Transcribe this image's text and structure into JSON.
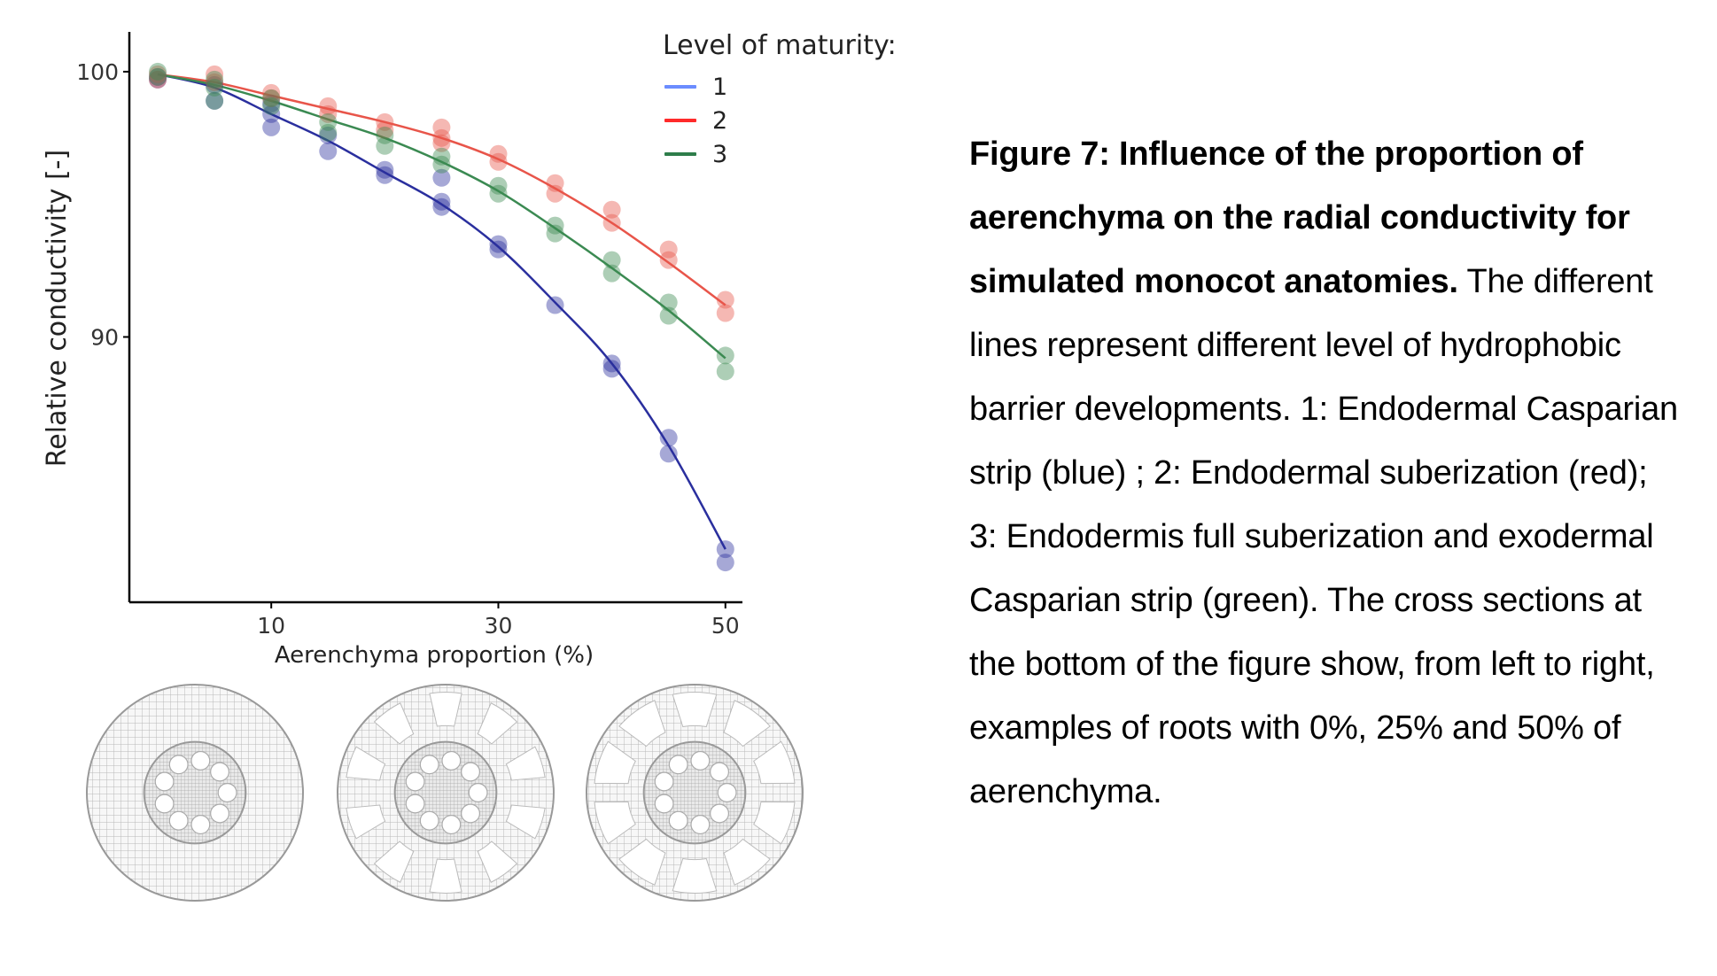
{
  "legend": {
    "title": "Level of maturity:",
    "items": [
      {
        "label": "1",
        "color": "#6b8cff"
      },
      {
        "label": "2",
        "color": "#ff2a2a"
      },
      {
        "label": "3",
        "color": "#2e7d4a"
      }
    ]
  },
  "caption": {
    "lead": "Figure 7: Influence of the proportion of aerenchyma on the radial conductivity for simulated monocot anatomies.",
    "body": " The different lines represent different level of hydrophobic barrier developments. 1: Endodermal Casparian strip (blue) ; 2: Endodermal suberization (red); 3: Endodermis full suberization and exodermal Casparian strip (green). The cross sections at the bottom of the figure show, from left to right, examples of roots with 0%, 25% and 50% of aerenchyma."
  },
  "chart_data": {
    "type": "scatter",
    "xlabel": "Aerenchyma proportion  (%)",
    "ylabel": "Relative conductivity [-]",
    "xlim": [
      -2.5,
      51.5
    ],
    "ylim": [
      80.0,
      101.5
    ],
    "xticks": [
      10,
      30,
      50
    ],
    "yticks": [
      90,
      100
    ],
    "grid": false,
    "legend_position": "top-right",
    "series": [
      {
        "name": "1",
        "color": "#2a2f9e",
        "fit": [
          [
            0,
            99.9
          ],
          [
            5,
            99.4
          ],
          [
            10,
            98.4
          ],
          [
            15,
            97.4
          ],
          [
            20,
            96.2
          ],
          [
            25,
            95.0
          ],
          [
            30,
            93.4
          ],
          [
            35,
            91.3
          ],
          [
            40,
            89.0
          ],
          [
            45,
            85.9
          ],
          [
            50,
            82.0
          ]
        ],
        "points": [
          [
            0,
            99.8
          ],
          [
            0,
            99.7
          ],
          [
            5,
            99.5
          ],
          [
            5,
            98.9
          ],
          [
            10,
            98.8
          ],
          [
            10,
            98.4
          ],
          [
            10,
            97.9
          ],
          [
            15,
            97.6
          ],
          [
            15,
            97.0
          ],
          [
            20,
            96.3
          ],
          [
            20,
            96.1
          ],
          [
            25,
            96.0
          ],
          [
            25,
            95.1
          ],
          [
            25,
            94.9
          ],
          [
            30,
            93.5
          ],
          [
            30,
            93.3
          ],
          [
            35,
            91.2
          ],
          [
            40,
            89.0
          ],
          [
            40,
            88.8
          ],
          [
            45,
            86.2
          ],
          [
            45,
            85.6
          ],
          [
            50,
            82.0
          ],
          [
            50,
            81.5
          ]
        ]
      },
      {
        "name": "2",
        "color": "#e8554a",
        "fit": [
          [
            0,
            99.9
          ],
          [
            5,
            99.6
          ],
          [
            10,
            99.1
          ],
          [
            15,
            98.6
          ],
          [
            20,
            98.1
          ],
          [
            25,
            97.5
          ],
          [
            30,
            96.7
          ],
          [
            35,
            95.6
          ],
          [
            40,
            94.3
          ],
          [
            45,
            92.8
          ],
          [
            50,
            91.2
          ]
        ],
        "points": [
          [
            0,
            99.9
          ],
          [
            0,
            99.7
          ],
          [
            5,
            99.9
          ],
          [
            5,
            99.6
          ],
          [
            10,
            99.2
          ],
          [
            10,
            99.0
          ],
          [
            15,
            98.7
          ],
          [
            15,
            98.4
          ],
          [
            20,
            98.1
          ],
          [
            20,
            97.8
          ],
          [
            25,
            97.9
          ],
          [
            25,
            97.5
          ],
          [
            25,
            97.3
          ],
          [
            30,
            96.9
          ],
          [
            30,
            96.6
          ],
          [
            35,
            95.8
          ],
          [
            35,
            95.4
          ],
          [
            40,
            94.8
          ],
          [
            40,
            94.3
          ],
          [
            45,
            93.3
          ],
          [
            45,
            92.9
          ],
          [
            50,
            91.4
          ],
          [
            50,
            90.9
          ]
        ]
      },
      {
        "name": "3",
        "color": "#3b8a52",
        "fit": [
          [
            0,
            99.9
          ],
          [
            5,
            99.5
          ],
          [
            10,
            98.9
          ],
          [
            15,
            98.2
          ],
          [
            20,
            97.5
          ],
          [
            25,
            96.6
          ],
          [
            30,
            95.5
          ],
          [
            35,
            94.1
          ],
          [
            40,
            92.6
          ],
          [
            45,
            91.0
          ],
          [
            50,
            89.2
          ]
        ],
        "points": [
          [
            0,
            100.0
          ],
          [
            0,
            99.8
          ],
          [
            5,
            99.7
          ],
          [
            5,
            99.4
          ],
          [
            5,
            98.9
          ],
          [
            10,
            99.0
          ],
          [
            10,
            98.7
          ],
          [
            15,
            98.1
          ],
          [
            15,
            97.7
          ],
          [
            20,
            97.6
          ],
          [
            20,
            97.2
          ],
          [
            25,
            96.8
          ],
          [
            25,
            96.5
          ],
          [
            30,
            95.7
          ],
          [
            30,
            95.4
          ],
          [
            35,
            94.2
          ],
          [
            35,
            93.9
          ],
          [
            40,
            92.9
          ],
          [
            40,
            92.4
          ],
          [
            45,
            91.3
          ],
          [
            45,
            90.8
          ],
          [
            50,
            89.3
          ],
          [
            50,
            88.7
          ]
        ]
      }
    ]
  }
}
